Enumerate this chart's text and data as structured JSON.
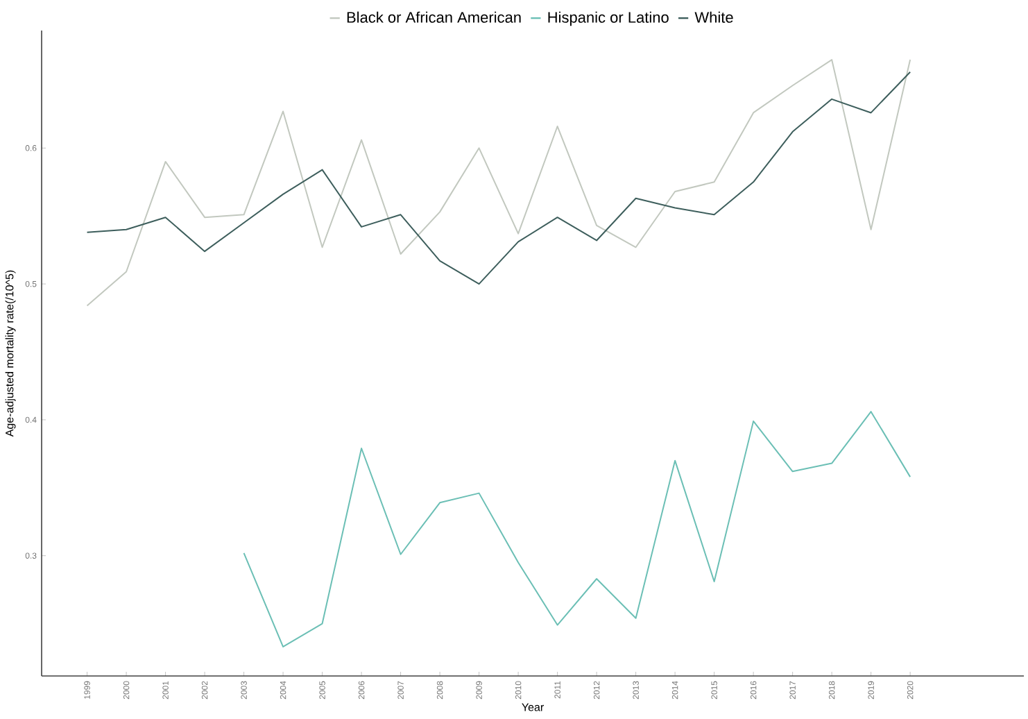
{
  "chart_data": {
    "type": "line",
    "xlabel": "Year",
    "ylabel": "Age-adjusted mortality rate(/10^5)",
    "categories": [
      "1999",
      "2000",
      "2001",
      "2002",
      "2003",
      "2004",
      "2005",
      "2006",
      "2007",
      "2008",
      "2009",
      "2010",
      "2011",
      "2012",
      "2013",
      "2014",
      "2015",
      "2016",
      "2017",
      "2018",
      "2019",
      "2020"
    ],
    "series": [
      {
        "name": "Black or African American",
        "color": "#c2c8bf",
        "values": [
          0.484,
          0.509,
          0.59,
          0.549,
          0.551,
          0.627,
          0.527,
          0.606,
          0.522,
          0.553,
          0.6,
          0.537,
          0.616,
          0.543,
          0.527,
          0.568,
          0.575,
          0.626,
          0.646,
          0.665,
          0.54,
          0.665
        ]
      },
      {
        "name": "Hispanic or Latino",
        "color": "#6bbfb5",
        "values": [
          null,
          null,
          null,
          null,
          0.302,
          0.233,
          0.25,
          0.379,
          0.301,
          0.339,
          0.346,
          0.295,
          0.249,
          0.283,
          0.254,
          0.37,
          0.281,
          0.399,
          0.362,
          0.368,
          0.406,
          0.358
        ]
      },
      {
        "name": "White",
        "color": "#3d5e5c",
        "values": [
          0.538,
          0.54,
          0.549,
          0.524,
          0.545,
          0.566,
          0.584,
          0.542,
          0.551,
          0.517,
          0.5,
          0.531,
          0.549,
          0.532,
          0.563,
          0.556,
          0.551,
          0.575,
          0.612,
          0.636,
          0.626,
          0.656
        ]
      }
    ],
    "ylim": [
      0.2115,
      0.6865
    ],
    "yticks": [
      0.3,
      0.4,
      0.5,
      0.6
    ],
    "legend": "top",
    "grid": false,
    "line_style": "solid"
  }
}
